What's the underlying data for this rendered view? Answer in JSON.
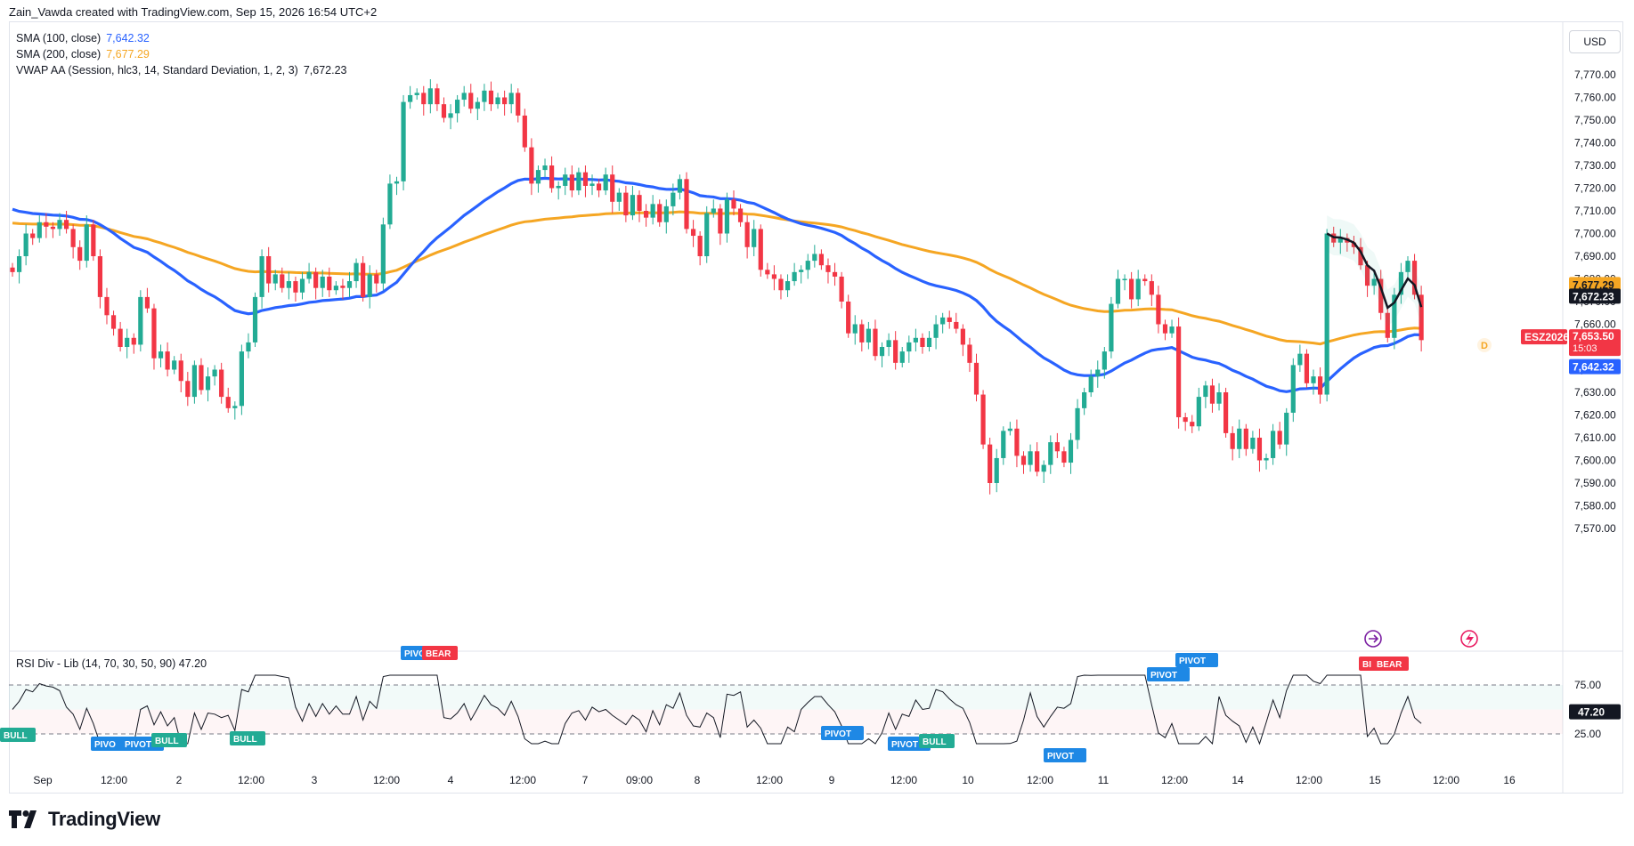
{
  "header": {
    "title": "Zain_Vawda created with TradingView.com, Sep 15, 2026 16:54 UTC+2"
  },
  "legend": {
    "sma100_label": "SMA (100, close)",
    "sma100_value": "7,642.32",
    "sma200_label": "SMA (200, close)",
    "sma200_value": "7,677.29",
    "vwap_label": "VWAP AA (Session, hlc3, 14, Standard Deviation, 1, 2, 3)",
    "vwap_value": "7,672.23"
  },
  "currency": "USD",
  "price_axis_ticks": [
    "7,770.00",
    "7,760.00",
    "7,750.00",
    "7,740.00",
    "7,730.00",
    "7,720.00",
    "7,710.00",
    "7,700.00",
    "7,690.00",
    "7,680.00",
    "7,670.00",
    "7,660.00",
    "7,650.00",
    "7,640.00",
    "7,630.00",
    "7,620.00",
    "7,610.00",
    "7,600.00",
    "7,590.00",
    "7,580.00",
    "7,570.00"
  ],
  "price_labels": {
    "sma200": "7,677.29",
    "vwap": "7,672.23",
    "symbol": "ESZ2026",
    "last": "7,653.50",
    "countdown": "15:03",
    "sma100": "7,642.32"
  },
  "time_axis_ticks": [
    "Sep",
    "12:00",
    "2",
    "12:00",
    "3",
    "12:00",
    "4",
    "12:00",
    "7",
    "09:00",
    "8",
    "12:00",
    "9",
    "12:00",
    "10",
    "12:00",
    "11",
    "12:00",
    "14",
    "12:00",
    "15",
    "12:00",
    "16"
  ],
  "rsi": {
    "legend_label": "RSI Div - Lib (14, 70, 30, 50, 90)",
    "legend_value": "47.20",
    "axis_ticks": [
      "75.00",
      "25.00"
    ],
    "current_label": "47.20",
    "signals": [
      "BULL",
      "PIVO",
      "PIVOT",
      "BULL",
      "BULL",
      "PIVO",
      "BEAR",
      "PIVOT",
      "PIVOT",
      "BULL",
      "PIVOT",
      "PIVOT",
      "PIVOT",
      "BI",
      "BEAR"
    ]
  },
  "icons": {
    "chart_marker_d": "D",
    "jump_icon": "forward-arrow-icon",
    "lightning_icon": "lightning-icon"
  },
  "brand": {
    "name": "TradingView"
  },
  "colors": {
    "up": "#22ab94",
    "down": "#f23645",
    "sma100": "#2962ff",
    "sma200": "#f5a623",
    "vwap": "#131722",
    "accent_label": "#f23645"
  },
  "chart_data": {
    "type": "candlestick",
    "symbol": "ESZ2026",
    "ylim": [
      7565,
      7775
    ],
    "close": [
      7683,
      7690,
      7700,
      7698,
      7705,
      7703,
      7702,
      7706,
      7702,
      7694,
      7688,
      7704,
      7690,
      7672,
      7664,
      7658,
      7650,
      7654,
      7651,
      7672,
      7667,
      7645,
      7648,
      7640,
      7644,
      7635,
      7628,
      7642,
      7631,
      7637,
      7640,
      7628,
      7623,
      7624,
      7648,
      7652,
      7672,
      7690,
      7678,
      7682,
      7676,
      7679,
      7674,
      7680,
      7683,
      7676,
      7681,
      7675,
      7677,
      7676,
      7679,
      7687,
      7672,
      7682,
      7678,
      7704,
      7722,
      7723,
      7758,
      7761,
      7762,
      7757,
      7764,
      7757,
      7751,
      7753,
      7759,
      7762,
      7755,
      7758,
      7763,
      7757,
      7760,
      7757,
      7762,
      7752,
      7738,
      7722,
      7728,
      7730,
      7720,
      7721,
      7726,
      7719,
      7727,
      7721,
      7722,
      7719,
      7726,
      7714,
      7718,
      7708,
      7717,
      7710,
      7707,
      7713,
      7705,
      7712,
      7718,
      7724,
      7702,
      7699,
      7690,
      7709,
      7711,
      7700,
      7715,
      7711,
      7705,
      7694,
      7702,
      7684,
      7682,
      7680,
      7675,
      7679,
      7683,
      7684,
      7688,
      7691,
      7686,
      7683,
      7681,
      7670,
      7656,
      7660,
      7652,
      7658,
      7646,
      7650,
      7653,
      7643,
      7648,
      7652,
      7654,
      7650,
      7654,
      7660,
      7663,
      7661,
      7658,
      7651,
      7643,
      7629,
      7607,
      7590,
      7601,
      7613,
      7614,
      7602,
      7598,
      7604,
      7595,
      7598,
      7608,
      7604,
      7599,
      7609,
      7623,
      7630,
      7637,
      7640,
      7648,
      7669,
      7680,
      7680,
      7671,
      7680,
      7679,
      7673,
      7660,
      7656,
      7659,
      7619,
      7617,
      7615,
      7628,
      7633,
      7625,
      7630,
      7612,
      7605,
      7614,
      7605,
      7610,
      7600,
      7601,
      7613,
      7607,
      7621,
      7642,
      7647,
      7634,
      7637,
      7629,
      7700,
      7696,
      7698,
      7696,
      7694,
      7686,
      7677,
      7680,
      7665,
      7654,
      7673,
      7683,
      7688,
      7673,
      7653
    ]
  }
}
